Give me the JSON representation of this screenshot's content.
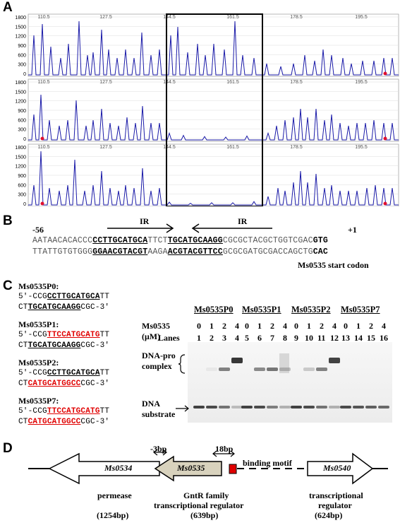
{
  "panels": {
    "A": "A",
    "B": "B",
    "C": "C",
    "D": "D"
  },
  "panelA": {
    "xticks": [
      "110.5",
      "127.5",
      "144.5",
      "161.5",
      "178.5",
      "195.5"
    ],
    "yticks": [
      "1800",
      "1500",
      "1200",
      "900",
      "600",
      "300",
      "0"
    ]
  },
  "panelB": {
    "pos_start": "-56",
    "pos_end": "+1",
    "ir_left": "IR",
    "ir_right": "IR",
    "top": {
      "a": "AATAACACACCC",
      "b": "CCTTGCATGCA",
      "c": "TTCT",
      "d": "TGCATGCAAGG",
      "e": "CGCGCTACGCTGGTCGAC",
      "f": "GTG"
    },
    "bottom": {
      "a": "TTATTGTGTGGG",
      "b": "GGAACGTACGT",
      "c": "AAGA",
      "d": "ACGTACGTTCC",
      "e": "GCGCGATGCGACCAGCTG",
      "f": "CAC"
    },
    "start_codon": "Ms0535 start codon"
  },
  "panelC": {
    "probes": [
      {
        "name": "Ms0535P0:",
        "l1": [
          {
            "t": "5'-CCG",
            "s": ""
          },
          {
            "t": "CCTTGCATGCA",
            "s": "ul"
          },
          {
            "t": "TT",
            "s": ""
          }
        ],
        "l2": [
          {
            "t": "CT",
            "s": ""
          },
          {
            "t": "TGCATGCAAGG",
            "s": "ul"
          },
          {
            "t": "CGC-3'",
            "s": ""
          }
        ]
      },
      {
        "name": "Ms0535P1:",
        "l1": [
          {
            "t": "5'-CCG",
            "s": ""
          },
          {
            "t": "TTCCATGCATG",
            "s": "ulred"
          },
          {
            "t": "TT",
            "s": ""
          }
        ],
        "l2": [
          {
            "t": "CT",
            "s": ""
          },
          {
            "t": "TGCATGCAAGG",
            "s": "ul"
          },
          {
            "t": "CGC-3'",
            "s": ""
          }
        ]
      },
      {
        "name": "Ms0535P2:",
        "l1": [
          {
            "t": "5'-CCG",
            "s": ""
          },
          {
            "t": "CCTTGCATGCA",
            "s": "ul"
          },
          {
            "t": "TT",
            "s": ""
          }
        ],
        "l2": [
          {
            "t": "CT",
            "s": ""
          },
          {
            "t": "CATGCATGGCC",
            "s": "ulred"
          },
          {
            "t": "CGC-3'",
            "s": ""
          }
        ]
      },
      {
        "name": "Ms0535P7:",
        "l1": [
          {
            "t": "5'-CCG",
            "s": ""
          },
          {
            "t": "TTCCATGCATG",
            "s": "ulred"
          },
          {
            "t": "TT",
            "s": ""
          }
        ],
        "l2": [
          {
            "t": "CT",
            "s": ""
          },
          {
            "t": "CATGCATGGCC",
            "s": "ulred"
          },
          {
            "t": "CGC-3'",
            "s": ""
          }
        ]
      }
    ],
    "groups": [
      "Ms0535P0",
      "Ms0535P1",
      "Ms0535P2",
      "Ms0535P7"
    ],
    "conc_label": "Ms0535 (μM)",
    "concs": [
      "0",
      "1",
      "2",
      "4"
    ],
    "lanes_label": "Lanes",
    "lanes": [
      "1",
      "2",
      "3",
      "4",
      "5",
      "6",
      "7",
      "8",
      "9",
      "10",
      "11",
      "12",
      "13",
      "14",
      "15",
      "16"
    ],
    "complex_label_1": "DNA-pro",
    "complex_label_2": "complex",
    "substrate_label_1": "DNA",
    "substrate_label_2": "substrate"
  },
  "panelD": {
    "genes": [
      "Ms0534",
      "Ms0535",
      "Ms0540"
    ],
    "gap1": "-3bp",
    "gap2": "18bp",
    "motif": "binding motif",
    "desc1": "permease",
    "size1": "(1254bp)",
    "desc2a": "GntR family",
    "desc2b": "transcriptional regulator",
    "size2": "(639bp)",
    "desc3a": "transcriptional",
    "desc3b": "regulator",
    "size3": "(624bp)"
  }
}
